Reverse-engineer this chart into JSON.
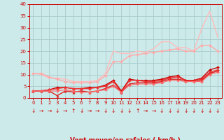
{
  "bg_color": "#cceaea",
  "grid_color": "#aacccc",
  "axis_color": "#cc0000",
  "x": [
    0,
    1,
    2,
    3,
    4,
    5,
    6,
    7,
    8,
    9,
    10,
    11,
    12,
    13,
    14,
    15,
    16,
    17,
    18,
    19,
    20,
    21,
    22,
    23
  ],
  "lines": [
    {
      "y": [
        10.5,
        10.0,
        8.5,
        8.5,
        8.0,
        7.0,
        7.0,
        7.0,
        7.5,
        10.5,
        20.0,
        19.0,
        19.0,
        20.0,
        19.5,
        21.0,
        24.0,
        24.0,
        21.5,
        21.5,
        20.0,
        29.5,
        37.0,
        26.0
      ],
      "color": "#ffbbbb",
      "lw": 1.0,
      "marker": null,
      "ms": 0
    },
    {
      "y": [
        10.5,
        10.5,
        9.0,
        8.0,
        7.0,
        6.5,
        6.5,
        6.5,
        7.0,
        9.5,
        15.5,
        15.5,
        18.0,
        18.5,
        19.0,
        19.5,
        20.0,
        20.5,
        21.0,
        20.0,
        20.0,
        22.5,
        22.5,
        20.0
      ],
      "color": "#ffaaaa",
      "lw": 1.0,
      "marker": "D",
      "ms": 2.0
    },
    {
      "y": [
        3.0,
        3.0,
        3.5,
        4.5,
        4.5,
        4.0,
        4.0,
        4.5,
        4.5,
        5.5,
        7.5,
        3.0,
        8.0,
        7.5,
        7.5,
        7.5,
        8.0,
        9.0,
        9.5,
        7.5,
        7.5,
        8.5,
        12.0,
        13.0
      ],
      "color": "#cc0000",
      "lw": 1.0,
      "marker": "D",
      "ms": 2.0
    },
    {
      "y": [
        3.0,
        3.0,
        3.5,
        4.0,
        4.5,
        4.0,
        4.0,
        4.0,
        4.5,
        5.0,
        7.0,
        2.5,
        7.5,
        7.5,
        7.0,
        7.0,
        7.5,
        8.5,
        9.0,
        7.5,
        7.5,
        8.0,
        11.0,
        12.0
      ],
      "color": "#ee3333",
      "lw": 1.0,
      "marker": "D",
      "ms": 2.0
    },
    {
      "y": [
        3.0,
        3.0,
        3.0,
        1.0,
        3.0,
        2.5,
        3.0,
        2.5,
        3.0,
        4.0,
        5.5,
        2.5,
        6.0,
        6.5,
        6.5,
        6.5,
        7.0,
        8.0,
        8.0,
        7.5,
        7.5,
        7.5,
        10.5,
        11.5
      ],
      "color": "#dd2222",
      "lw": 1.0,
      "marker": "^",
      "ms": 2.5
    },
    {
      "y": [
        3.0,
        3.0,
        3.0,
        3.0,
        3.5,
        3.0,
        2.5,
        2.5,
        3.0,
        3.5,
        5.0,
        2.5,
        5.5,
        6.0,
        6.0,
        6.0,
        6.5,
        7.5,
        7.5,
        7.0,
        7.0,
        7.0,
        10.0,
        11.0
      ],
      "color": "#ff6666",
      "lw": 0.8,
      "marker": "D",
      "ms": 1.8
    }
  ],
  "ylim": [
    0,
    40
  ],
  "xlim": [
    -0.5,
    23.5
  ],
  "yticks": [
    0,
    5,
    10,
    15,
    20,
    25,
    30,
    35,
    40
  ],
  "xticks": [
    0,
    1,
    2,
    3,
    4,
    5,
    6,
    7,
    8,
    9,
    10,
    11,
    12,
    13,
    14,
    15,
    16,
    17,
    18,
    19,
    20,
    21,
    22,
    23
  ],
  "wind_symbols": [
    "↓",
    "→",
    "→",
    "↓",
    "→",
    "↑",
    "↓",
    "→",
    "→",
    "↓",
    "↓",
    "↓",
    "↓",
    "↑",
    "→",
    "→",
    "↓",
    "↓",
    "↓",
    "↓",
    "↓",
    "↓",
    "↓",
    "↓"
  ]
}
